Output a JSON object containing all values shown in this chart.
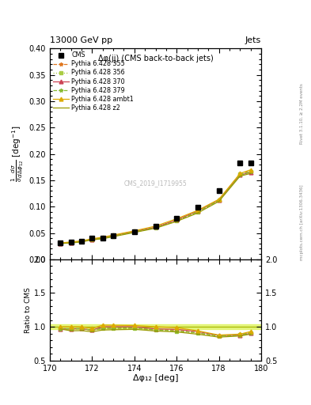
{
  "title_main": "13000 GeV pp",
  "title_right": "Jets",
  "plot_title": "Δφ(jj) (CMS back-to-back jets)",
  "xlabel": "Δφ₁₂ [deg]",
  "ylabel_main": "$\\frac{1}{\\sigma}\\frac{d\\sigma}{d\\Delta\\phi_{12}}$ [deg$^{-1}$]",
  "ylabel_ratio": "Ratio to CMS",
  "watermark": "CMS_2019_I1719955",
  "rivet_text": "Rivet 3.1.10, ≥ 2.2M events",
  "arxiv_text": "mcplots.cern.ch [arXiv:1306.3436]",
  "xlim": [
    170,
    180
  ],
  "ylim_main": [
    0.0,
    0.4
  ],
  "ylim_ratio": [
    0.5,
    2.0
  ],
  "yticks_main": [
    0.0,
    0.05,
    0.1,
    0.15,
    0.2,
    0.25,
    0.3,
    0.35,
    0.4
  ],
  "yticks_ratio": [
    0.5,
    1.0,
    1.5,
    2.0
  ],
  "cms_x": [
    170.5,
    171.0,
    171.5,
    172.0,
    172.5,
    173.0,
    174.0,
    175.0,
    176.0,
    177.0,
    178.0,
    179.0,
    179.5
  ],
  "cms_y": [
    0.031,
    0.033,
    0.035,
    0.04,
    0.041,
    0.045,
    0.053,
    0.063,
    0.078,
    0.099,
    0.13,
    0.183,
    0.183
  ],
  "p355_x": [
    170.5,
    171.0,
    171.5,
    172.0,
    172.5,
    173.0,
    174.0,
    175.0,
    176.0,
    177.0,
    178.0,
    179.0,
    179.5
  ],
  "p355_y": [
    0.03,
    0.032,
    0.034,
    0.038,
    0.04,
    0.044,
    0.052,
    0.06,
    0.074,
    0.09,
    0.112,
    0.162,
    0.168
  ],
  "p356_x": [
    170.5,
    171.0,
    171.5,
    172.0,
    172.5,
    173.0,
    174.0,
    175.0,
    176.0,
    177.0,
    178.0,
    179.0,
    179.5
  ],
  "p356_y": [
    0.03,
    0.032,
    0.034,
    0.038,
    0.04,
    0.044,
    0.052,
    0.06,
    0.073,
    0.09,
    0.112,
    0.162,
    0.167
  ],
  "p370_x": [
    170.5,
    171.0,
    171.5,
    172.0,
    172.5,
    173.0,
    174.0,
    175.0,
    176.0,
    177.0,
    178.0,
    179.0,
    179.5
  ],
  "p370_y": [
    0.03,
    0.032,
    0.034,
    0.038,
    0.041,
    0.045,
    0.053,
    0.061,
    0.075,
    0.092,
    0.113,
    0.16,
    0.165
  ],
  "p379_x": [
    170.5,
    171.0,
    171.5,
    172.0,
    172.5,
    173.0,
    174.0,
    175.0,
    176.0,
    177.0,
    178.0,
    179.0,
    179.5
  ],
  "p379_y": [
    0.03,
    0.032,
    0.034,
    0.038,
    0.04,
    0.044,
    0.052,
    0.06,
    0.073,
    0.09,
    0.112,
    0.16,
    0.166
  ],
  "pambt1_x": [
    170.5,
    171.0,
    171.5,
    172.0,
    172.5,
    173.0,
    174.0,
    175.0,
    176.0,
    177.0,
    178.0,
    179.0,
    179.5
  ],
  "pambt1_y": [
    0.031,
    0.033,
    0.035,
    0.039,
    0.042,
    0.046,
    0.054,
    0.063,
    0.077,
    0.093,
    0.114,
    0.163,
    0.17
  ],
  "pz2_x": [
    170.5,
    171.0,
    171.5,
    172.0,
    172.5,
    173.0,
    174.0,
    175.0,
    176.0,
    177.0,
    178.0,
    179.0,
    179.5
  ],
  "pz2_y": [
    0.03,
    0.031,
    0.033,
    0.037,
    0.039,
    0.043,
    0.051,
    0.059,
    0.072,
    0.088,
    0.11,
    0.158,
    0.163
  ],
  "colors": {
    "cms": "#000000",
    "p355": "#e07820",
    "p356": "#aacc44",
    "p370": "#cc4455",
    "p379": "#88bb33",
    "pambt1": "#ddaa00",
    "pz2": "#999900"
  },
  "ratio_band_color": "#ccee00",
  "ratio_band_alpha": 0.45,
  "ratio_line_y": 1.0,
  "ratio_line_color": "#aabb00"
}
